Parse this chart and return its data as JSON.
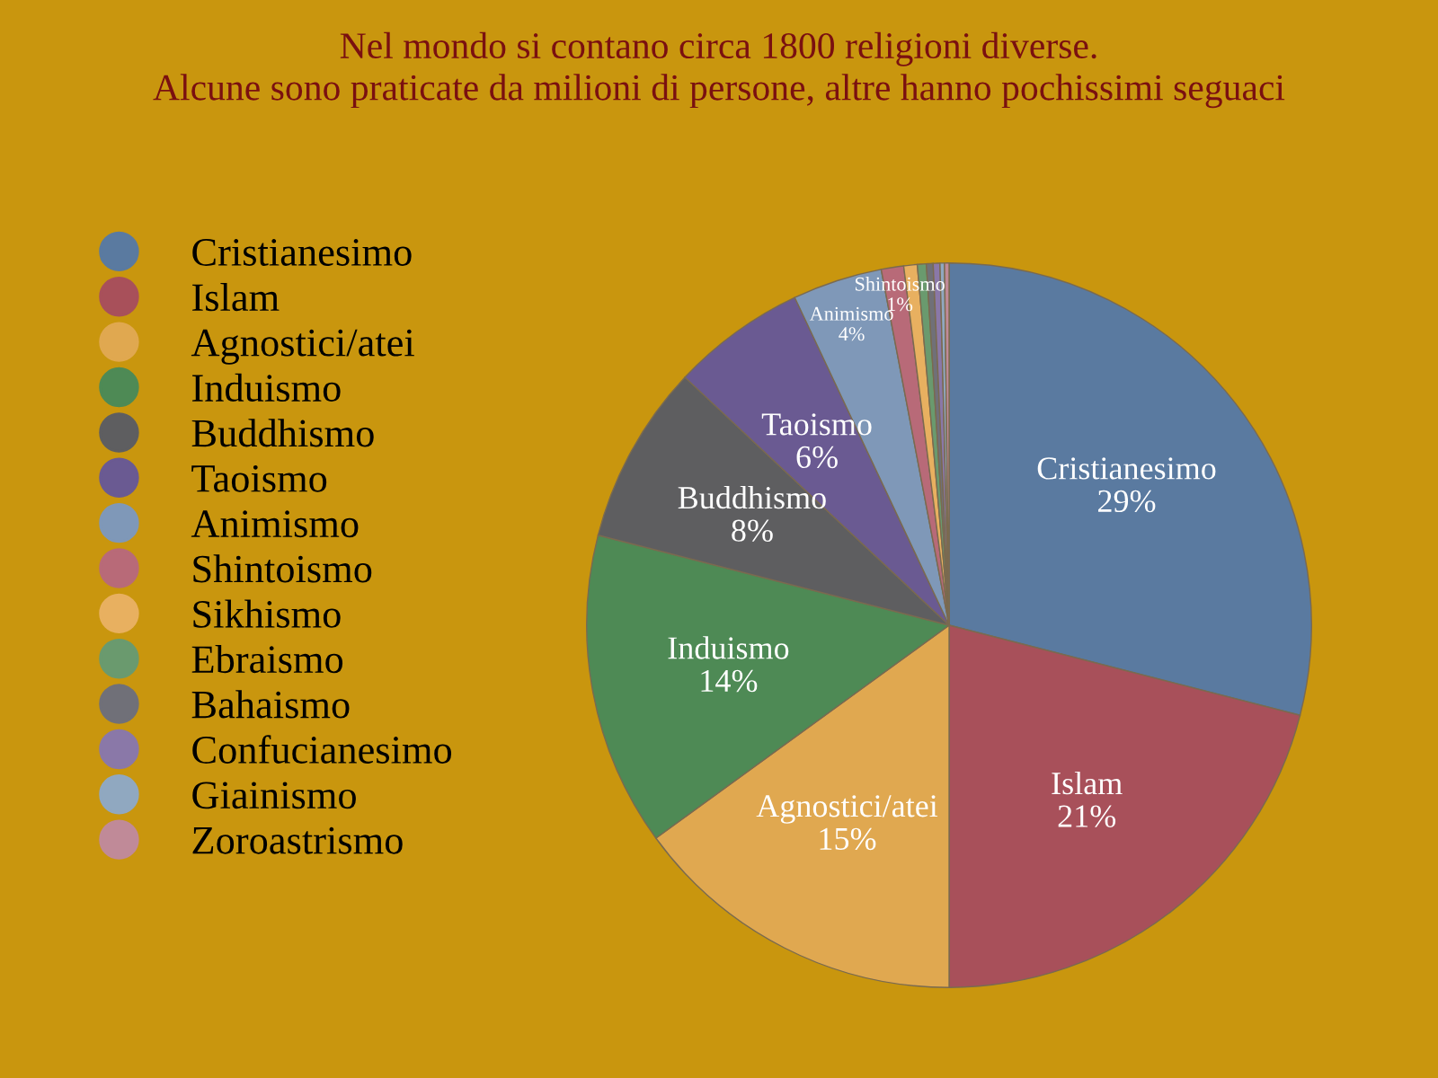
{
  "chart_data": {
    "type": "pie",
    "title": "Nel mondo si contano circa 1800 religioni diverse.\nAlcune sono praticate da milioni di persone, altre hanno pochissimi seguaci",
    "categories": [
      "Cristianesimo",
      "Islam",
      "Agnostici/atei",
      "Induismo",
      "Buddhismo",
      "Taoismo",
      "Animismo",
      "Shintoismo",
      "Sikhismo",
      "Ebraismo",
      "Bahaismo",
      "Confucianesimo",
      "Giainismo",
      "Zoroastrismo"
    ],
    "values": [
      29,
      21,
      15,
      14,
      8,
      6,
      4,
      1,
      0.6,
      0.4,
      0.3,
      0.3,
      0.2,
      0.2
    ],
    "value_labels": [
      "29%",
      "21%",
      "15%",
      "14%",
      "8%",
      "6%",
      "4%",
      "1%",
      null,
      null,
      null,
      null,
      null,
      null
    ],
    "colors": [
      "#5a7aa0",
      "#a8505a",
      "#e0a850",
      "#4e8a55",
      "#5e5e60",
      "#6a5a92",
      "#7f98b8",
      "#b86a78",
      "#e8b060",
      "#6a9a6e",
      "#707078",
      "#8a78a8",
      "#90a8c0",
      "#c08a98"
    ],
    "legend": "left"
  }
}
